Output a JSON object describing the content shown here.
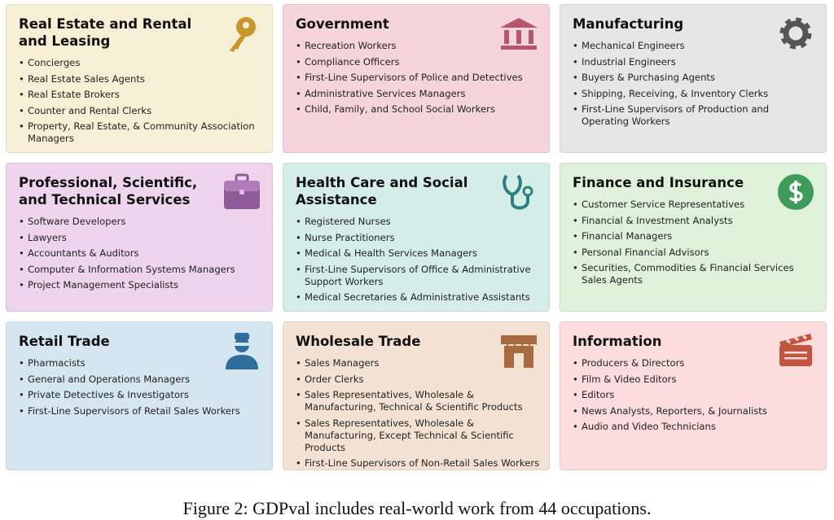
{
  "cards": [
    {
      "title": "Real Estate and Rental and Leasing",
      "items": [
        "Concierges",
        "Real Estate Sales Agents",
        "Real Estate Brokers",
        "Counter and Rental Clerks",
        "Property, Real Estate, & Community Association Managers"
      ]
    },
    {
      "title": "Government",
      "items": [
        "Recreation Workers",
        "Compliance Officers",
        "First-Line Supervisors of Police and Detectives",
        "Administrative Services Managers",
        "Child, Family, and School Social Workers"
      ]
    },
    {
      "title": "Manufacturing",
      "items": [
        "Mechanical Engineers",
        "Industrial Engineers",
        "Buyers & Purchasing Agents",
        "Shipping, Receiving, & Inventory Clerks",
        "First-Line Supervisors of Production and Operating Workers"
      ]
    },
    {
      "title": "Professional, Scientific, and Technical Services",
      "items": [
        "Software Developers",
        "Lawyers",
        "Accountants & Auditors",
        "Computer & Information Systems Managers",
        "Project Management Specialists"
      ]
    },
    {
      "title": "Health Care and Social Assistance",
      "items": [
        "Registered Nurses",
        "Nurse Practitioners",
        "Medical & Health Services Managers",
        "First-Line Supervisors of Office & Administrative Support Workers",
        "Medical Secretaries & Administrative Assistants"
      ]
    },
    {
      "title": "Finance and Insurance",
      "items": [
        "Customer Service Representatives",
        "Financial & Investment Analysts",
        "Financial Managers",
        "Personal Financial Advisors",
        "Securities, Commodities & Financial Services Sales Agents"
      ]
    },
    {
      "title": "Retail Trade",
      "items": [
        "Pharmacists",
        "General and Operations Managers",
        "Private Detectives & Investigators",
        "First-Line Supervisors of Retail Sales Workers"
      ]
    },
    {
      "title": "Wholesale Trade",
      "items": [
        "Sales Managers",
        "Order Clerks",
        "Sales Representatives, Wholesale & Manufacturing, Technical & Scientific Products",
        "Sales Representatives, Wholesale & Manufacturing, Except Technical & Scientific Products",
        "First-Line Supervisors of Non-Retail Sales Workers"
      ]
    },
    {
      "title": "Information",
      "items": [
        "Producers & Directors",
        "Film & Video Editors",
        "Editors",
        "News Analysts, Reporters, & Journalists",
        "Audio and Video Technicians"
      ]
    }
  ],
  "caption": "Figure 2: GDPval includes real-world work from 44 occupations."
}
